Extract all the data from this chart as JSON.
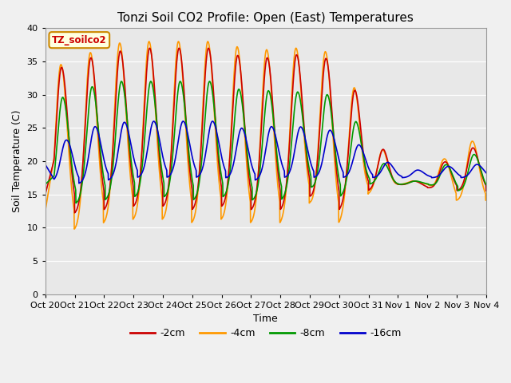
{
  "title": "Tonzi Soil CO2 Profile: Open (East) Temperatures",
  "xlabel": "Time",
  "ylabel": "Soil Temperature (C)",
  "ylim": [
    0,
    40
  ],
  "yticks": [
    0,
    5,
    10,
    15,
    20,
    25,
    30,
    35,
    40
  ],
  "plot_bg_color": "#e8e8e8",
  "fig_bg_color": "#f0f0f0",
  "legend_label": "TZ_soilco2",
  "series_labels": [
    "-2cm",
    "-4cm",
    "-8cm",
    "-16cm"
  ],
  "series_colors": [
    "#cc0000",
    "#ff9900",
    "#009900",
    "#0000cc"
  ],
  "line_width": 1.2,
  "title_fontsize": 11,
  "axis_fontsize": 9,
  "tick_fontsize": 8,
  "tick_labels": [
    "Oct 20",
    "Oct 21",
    "Oct 22",
    "Oct 23",
    "Oct 24",
    "Oct 25",
    "Oct 26",
    "Oct 27",
    "Oct 28",
    "Oct 29",
    "Oct 30",
    "Oct 31",
    "Nov 1",
    "Nov 2",
    "Nov 3",
    "Nov 4"
  ]
}
